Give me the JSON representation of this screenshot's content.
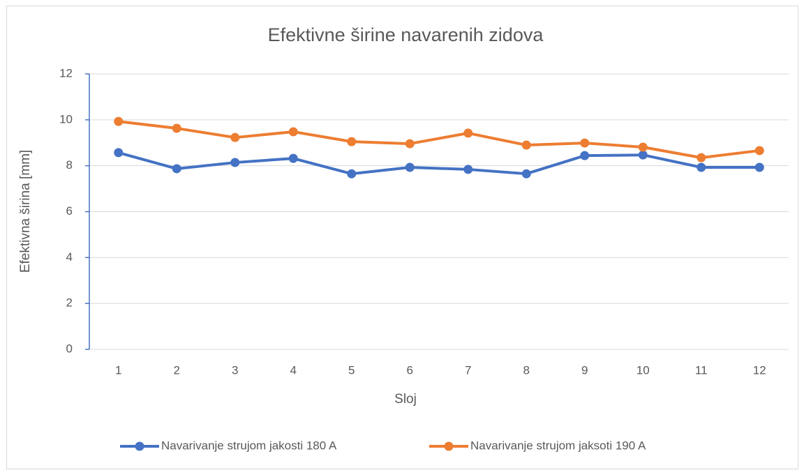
{
  "chart_data": {
    "type": "line",
    "title": "Efektivne širine navarenih zidova",
    "x_label": "Sloj",
    "y_label": "Efektivna širina [mm]",
    "categories": [
      "1",
      "2",
      "3",
      "4",
      "5",
      "6",
      "7",
      "8",
      "9",
      "10",
      "11",
      "12"
    ],
    "series": [
      {
        "name": "Navarivanje strujom jakosti 180 A",
        "color": "#4472c4",
        "values": [
          8.57,
          7.87,
          8.14,
          8.32,
          7.65,
          7.93,
          7.84,
          7.65,
          8.44,
          8.47,
          7.93,
          7.93
        ]
      },
      {
        "name": "Navarivanje strujom jaksoti 190 A",
        "color": "#ed7d31",
        "values": [
          9.93,
          9.63,
          9.23,
          9.48,
          9.05,
          8.96,
          9.42,
          8.9,
          8.99,
          8.81,
          8.35,
          8.66
        ]
      }
    ],
    "ylim": [
      0,
      12
    ],
    "yticks": [
      0,
      2,
      4,
      6,
      8,
      10,
      12
    ],
    "grid": true,
    "legend": "bottom"
  }
}
